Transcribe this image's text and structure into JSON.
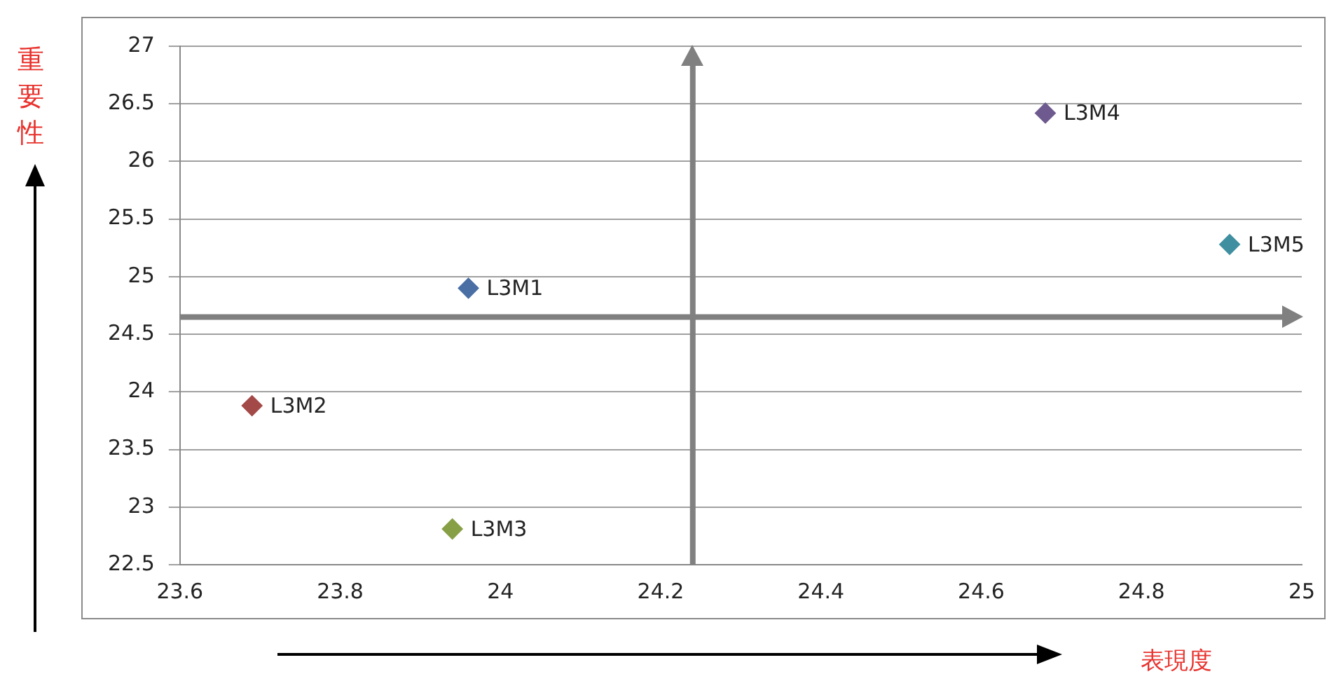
{
  "chart_data": {
    "type": "scatter",
    "xlabel": "表現度",
    "ylabel": "重要性",
    "xlim": [
      23.6,
      25
    ],
    "xticks": [
      23.6,
      23.8,
      24,
      24.2,
      24.4,
      24.6,
      24.8,
      25
    ],
    "ylim": [
      22.5,
      27
    ],
    "yticks": [
      22.5,
      23,
      23.5,
      24,
      24.5,
      25,
      25.5,
      26,
      26.5,
      27
    ],
    "grid": "y",
    "marker": "diamond",
    "legend": false,
    "series": [
      {
        "name": "L3M1",
        "color": "#4a6fa5",
        "x": [
          23.96
        ],
        "values": [
          24.9
        ]
      },
      {
        "name": "L3M2",
        "color": "#a34a48",
        "x": [
          23.69
        ],
        "values": [
          23.88
        ]
      },
      {
        "name": "L3M3",
        "color": "#87a046",
        "x": [
          23.94
        ],
        "values": [
          22.81
        ]
      },
      {
        "name": "L3M4",
        "color": "#6e5a8e",
        "x": [
          24.68
        ],
        "values": [
          26.42
        ]
      },
      {
        "name": "L3M5",
        "color": "#3f8fa0",
        "x": [
          24.91
        ],
        "values": [
          25.28
        ]
      }
    ],
    "ref_lines": [
      {
        "axis": "x",
        "value": 24.24,
        "color": "#808080"
      },
      {
        "axis": "y",
        "value": 24.65,
        "color": "#808080"
      }
    ]
  }
}
